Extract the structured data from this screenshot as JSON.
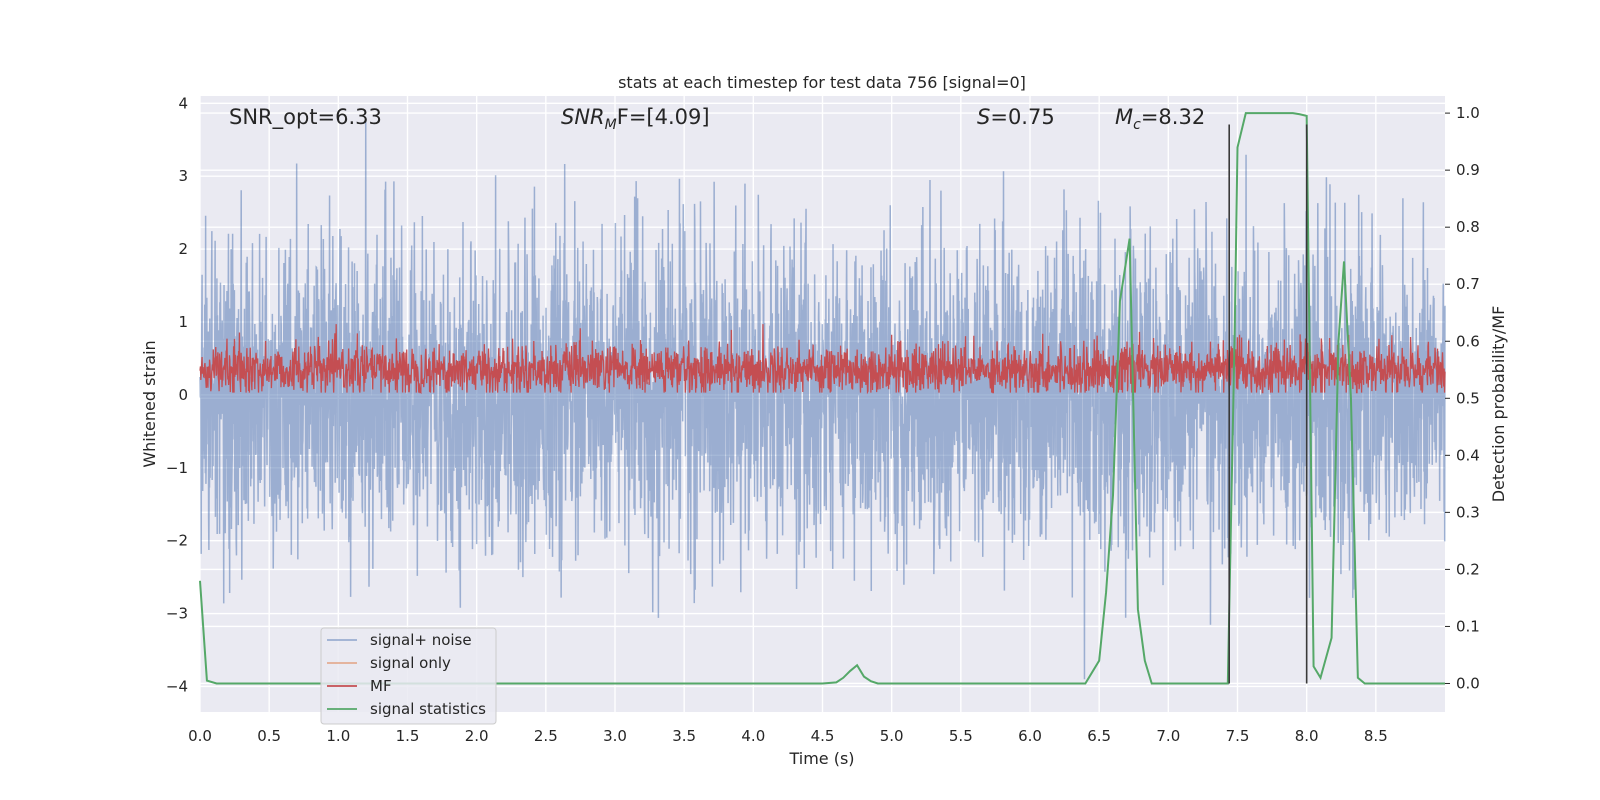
{
  "chart_data": {
    "type": "line",
    "title": "stats at each timestep for test data 756 [signal=0]",
    "xlabel": "Time (s)",
    "ylabel_left": "Whitened strain",
    "ylabel_right": "Detection probability/MF",
    "xlim": [
      0.0,
      9.0
    ],
    "ylim_left": [
      -4.35,
      4.1
    ],
    "ylim_right": [
      -0.05,
      1.03
    ],
    "x_ticks": [
      "0.0",
      "0.5",
      "1.0",
      "1.5",
      "2.0",
      "2.5",
      "3.0",
      "3.5",
      "4.0",
      "4.5",
      "5.0",
      "5.5",
      "6.0",
      "6.5",
      "7.0",
      "7.5",
      "8.0",
      "8.5"
    ],
    "y_left_ticks": [
      "4",
      "3",
      "2",
      "1",
      "0",
      "−1",
      "−2",
      "−3",
      "−4"
    ],
    "y_right_ticks": [
      "1.0",
      "0.9",
      "0.8",
      "0.7",
      "0.6",
      "0.5",
      "0.4",
      "0.3",
      "0.2",
      "0.1",
      "0.0"
    ],
    "grid": true,
    "legend_position": "lower-left",
    "annotations": {
      "snr_opt": "SNR_opt=6.33",
      "snr_mf_base": "SNR",
      "snr_mf_sub": "M",
      "snr_mf_rest": "F=[4.09]",
      "s_base": "S",
      "s_rest": "=0.75",
      "mc_base": "M",
      "mc_sub": "c",
      "mc_rest": "=8.32"
    },
    "series": [
      {
        "name": "signal+ noise",
        "color": "#4c72b0",
        "style": "noise",
        "x_range": [
          0.0,
          9.0
        ],
        "mean": 0.0,
        "spread_range": [
          -3.9,
          3.75
        ]
      },
      {
        "name": "signal only",
        "color": "#dd8452",
        "style": "line",
        "x": [],
        "y": []
      },
      {
        "name": "MF",
        "color": "#c44e52",
        "style": "noise",
        "axis": "right",
        "x_range": [
          0.0,
          9.0
        ],
        "mean": 0.55,
        "spread_range": [
          0.51,
          0.63
        ]
      },
      {
        "name": "signal statistics",
        "color": "#55a868",
        "style": "line",
        "axis": "right",
        "x": [
          0.0,
          0.05,
          0.12,
          1.0,
          2.0,
          3.0,
          4.0,
          4.5,
          4.6,
          4.65,
          4.7,
          4.75,
          4.8,
          4.85,
          4.9,
          5.0,
          5.5,
          6.0,
          6.4,
          6.5,
          6.55,
          6.6,
          6.65,
          6.72,
          6.78,
          6.83,
          6.88,
          7.0,
          7.2,
          7.43,
          7.48,
          7.5,
          7.52,
          7.56,
          7.7,
          7.9,
          7.95,
          8.0,
          8.05,
          8.1,
          8.18,
          8.23,
          8.27,
          8.32,
          8.37,
          8.42,
          8.5,
          9.0
        ],
        "y": [
          0.18,
          0.005,
          0.0,
          0.0,
          0.0,
          0.0,
          0.0,
          0.0,
          0.002,
          0.01,
          0.022,
          0.032,
          0.012,
          0.004,
          0.0,
          0.0,
          0.0,
          0.0,
          0.0,
          0.04,
          0.16,
          0.33,
          0.67,
          0.78,
          0.13,
          0.04,
          0.0,
          0.0,
          0.0,
          0.0,
          0.62,
          0.94,
          0.96,
          1.0,
          1.0,
          1.0,
          0.998,
          0.995,
          0.03,
          0.01,
          0.08,
          0.6,
          0.74,
          0.5,
          0.01,
          0.0,
          0.0,
          0.0
        ]
      }
    ],
    "vertical_lines": {
      "color": "#3a3a3a",
      "x": [
        7.44,
        8.0
      ],
      "y_right_top": [
        0.98,
        0.98
      ]
    }
  }
}
